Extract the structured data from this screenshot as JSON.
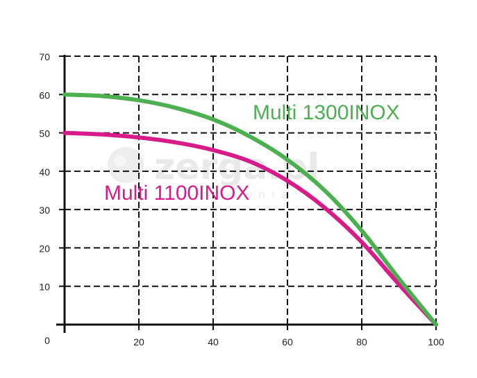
{
  "chart_data": {
    "type": "line",
    "title": "",
    "xlabel": "",
    "ylabel": "",
    "xlim": [
      0,
      100
    ],
    "ylim": [
      0,
      70
    ],
    "x_ticks": [
      20,
      40,
      60,
      80,
      100
    ],
    "y_ticks": [
      10,
      20,
      30,
      40,
      50,
      60,
      70
    ],
    "origin_label": "0",
    "grid": true,
    "legend": "inline-labels",
    "series": [
      {
        "name": "Multi 1300INOX",
        "color": "#4caf50",
        "x": [
          0,
          10,
          20,
          30,
          40,
          50,
          60,
          70,
          80,
          90,
          100
        ],
        "y": [
          60,
          59.6,
          58.5,
          56.5,
          53.5,
          49,
          43,
          35,
          24.5,
          12,
          0
        ]
      },
      {
        "name": "Multi 1100INOX",
        "color": "#d81b8a",
        "x": [
          0,
          10,
          20,
          30,
          40,
          50,
          60,
          70,
          80,
          90,
          100
        ],
        "y": [
          50,
          49.6,
          48.8,
          47.5,
          45.5,
          42.5,
          37.5,
          30.5,
          21.5,
          10.5,
          0
        ]
      }
    ],
    "watermark": {
      "text": "zerga.pl",
      "subtext": "hurtownia"
    }
  }
}
